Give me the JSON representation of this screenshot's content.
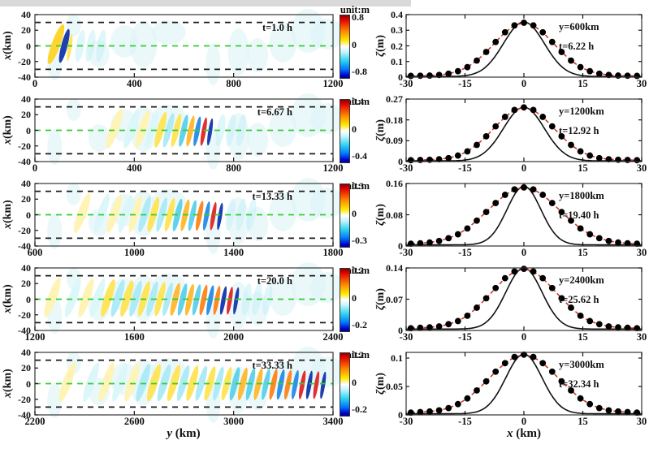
{
  "figure": {
    "unit_label": "unit:m",
    "left_ylabel_italic": "x",
    "left_ylabel_rest": " (km)",
    "left_xlabel_italic": "y",
    "left_xlabel_rest": " (km)",
    "right_ylabel_italic": "ζ",
    "right_ylabel_rest": "(m)",
    "right_xlabel_italic": "x",
    "right_xlabel_rest": " (km)",
    "colors": {
      "green_dash": "#35cc35",
      "black_dash": "#1a1a1a",
      "red_dash_curve": "#d42d1e",
      "solid_curve": "#111111",
      "dot_fill": "#000000",
      "frame": "#333333"
    }
  },
  "chart_data": {
    "type": "figure",
    "left_panels": [
      {
        "type": "heatmap",
        "time_label": "t=1.0 h",
        "xlim": [
          0,
          1200
        ],
        "xticks": [
          "0",
          "400",
          "800",
          "1200"
        ],
        "yticks": [
          "40",
          "20",
          "0",
          "-20",
          "-40"
        ],
        "dashed_lines_km": [
          30,
          0,
          -30
        ],
        "colorbar": {
          "max": "0.8",
          "mid": "0",
          "min": "-0.8"
        },
        "packet": {
          "y_start_km": 85,
          "y_end_km": 140,
          "n": 3,
          "i0": 0.55,
          "gamma": 0.6,
          "colors": [
            "#ffd21f",
            "#0b2fa8",
            "#ffe34d"
          ]
        }
      },
      {
        "type": "heatmap",
        "time_label": "t=6.67 h",
        "xlim": [
          0,
          1200
        ],
        "xticks": [
          "0",
          "400",
          "800",
          "1200"
        ],
        "yticks": [
          "40",
          "20",
          "0",
          "-20",
          "-40"
        ],
        "dashed_lines_km": [
          30,
          0,
          -30
        ],
        "colorbar": {
          "max": "0.4",
          "mid": "0",
          "min": "-0.4"
        },
        "packet": {
          "y_start_km": 320,
          "y_end_km": 705,
          "n": 12,
          "i0": 0.15,
          "gamma": 2.2
        }
      },
      {
        "type": "heatmap",
        "time_label": "t=13.33 h",
        "xlim": [
          600,
          1800
        ],
        "xticks": [
          "600",
          "1000",
          "1400",
          "1800"
        ],
        "yticks": [
          "40",
          "20",
          "0",
          "-20",
          "-40"
        ],
        "dashed_lines_km": [
          30,
          0,
          -30
        ],
        "colorbar": {
          "max": "0.3",
          "mid": "0",
          "min": "-0.3"
        },
        "packet": {
          "y_start_km": 790,
          "y_end_km": 1345,
          "n": 16,
          "i0": 0.15,
          "gamma": 2.2
        }
      },
      {
        "type": "heatmap",
        "time_label": "t=20.0 h",
        "xlim": [
          1200,
          2400
        ],
        "xticks": [
          "1200",
          "1600",
          "2000",
          "2400"
        ],
        "yticks": [
          "40",
          "20",
          "0",
          "-20",
          "-40"
        ],
        "dashed_lines_km": [
          30,
          0,
          -30
        ],
        "colorbar": {
          "max": "0.2",
          "mid": "0",
          "min": "-0.2"
        },
        "packet": {
          "y_start_km": 1270,
          "y_end_km": 2010,
          "n": 22,
          "i0": 0.18,
          "gamma": 2.2
        }
      },
      {
        "type": "heatmap",
        "time_label": "t=33.33 h",
        "xlim": [
          2200,
          3400
        ],
        "xticks": [
          "2200",
          "2600",
          "3000",
          "3400"
        ],
        "yticks": [
          "40",
          "20",
          "0",
          "-20",
          "-40"
        ],
        "dashed_lines_km": [
          30,
          0,
          -30
        ],
        "colorbar": {
          "max": "0.2",
          "mid": "0",
          "min": "-0.2"
        },
        "packet": {
          "y_start_km": 2330,
          "y_end_km": 3360,
          "n": 28,
          "i0": 0.18,
          "gamma": 2.2
        }
      }
    ],
    "right_panels": [
      {
        "type": "line+scatter",
        "y_label": "y=600km",
        "t_label": "t=6.22 h",
        "ylim": 0.4,
        "yticks": [
          "0",
          "0.1",
          "0.2",
          "0.3",
          "0.4"
        ],
        "xticks": [
          "-30",
          "-15",
          "0",
          "15",
          "30"
        ],
        "solid": {
          "amp": 0.349,
          "sigma": 5.2,
          "base": 0.004
        },
        "dots_x": [
          -28.8,
          -26.4,
          -24,
          -21.6,
          -19.2,
          -16.8,
          -14.4,
          -12,
          -9.6,
          -7.2,
          -4.8,
          -2.4,
          0,
          2.4,
          4.8,
          7.2,
          9.6,
          12,
          14.4,
          16.8,
          19.2,
          21.6,
          24,
          26.4,
          28.8
        ],
        "dots_y": [
          0.008,
          0.009,
          0.01,
          0.014,
          0.022,
          0.038,
          0.064,
          0.106,
          0.161,
          0.225,
          0.287,
          0.331,
          0.348,
          0.331,
          0.287,
          0.225,
          0.161,
          0.106,
          0.064,
          0.038,
          0.022,
          0.014,
          0.01,
          0.009,
          0.008
        ]
      },
      {
        "type": "line+scatter",
        "y_label": "y=1200km",
        "t_label": "t=12.92 h",
        "ylim": 0.27,
        "yticks": [
          "0",
          "0.09",
          "0.18",
          "0.27"
        ],
        "xticks": [
          "-30",
          "-15",
          "0",
          "15",
          "30"
        ],
        "solid": {
          "amp": 0.232,
          "sigma": 5.2,
          "base": 0.003
        },
        "dots_x": [
          -28.8,
          -26.4,
          -24,
          -21.6,
          -19.2,
          -16.8,
          -14.4,
          -12,
          -9.6,
          -7.2,
          -4.8,
          -2.4,
          0,
          2.4,
          4.8,
          7.2,
          9.6,
          12,
          14.4,
          16.8,
          19.2,
          21.6,
          24,
          26.4,
          28.8
        ],
        "dots_y": [
          0.006,
          0.007,
          0.008,
          0.01,
          0.015,
          0.026,
          0.044,
          0.072,
          0.109,
          0.152,
          0.193,
          0.223,
          0.234,
          0.223,
          0.193,
          0.152,
          0.109,
          0.072,
          0.044,
          0.026,
          0.015,
          0.01,
          0.008,
          0.007,
          0.006
        ]
      },
      {
        "type": "line+scatter",
        "y_label": "y=1800km",
        "t_label": "t=19.40 h",
        "ylim": 0.16,
        "yticks": [
          "0",
          "0.08",
          "0.16"
        ],
        "xticks": [
          "-30",
          "-15",
          "0",
          "15",
          "30"
        ],
        "solid": {
          "amp": 0.15,
          "sigma": 4.3,
          "base": 0.003
        },
        "dots_x": [
          -28.8,
          -26.4,
          -24,
          -21.6,
          -19.2,
          -16.8,
          -14.4,
          -12,
          -9.6,
          -7.2,
          -4.8,
          -2.4,
          0,
          2.4,
          4.8,
          7.2,
          9.6,
          12,
          14.4,
          16.8,
          19.2,
          21.6,
          24,
          26.4,
          28.8
        ],
        "dots_y": [
          0.006,
          0.007,
          0.009,
          0.013,
          0.02,
          0.03,
          0.045,
          0.065,
          0.087,
          0.11,
          0.131,
          0.145,
          0.15,
          0.145,
          0.131,
          0.11,
          0.087,
          0.065,
          0.045,
          0.03,
          0.02,
          0.013,
          0.009,
          0.007,
          0.006
        ]
      },
      {
        "type": "line+scatter",
        "y_label": "y=2400km",
        "t_label": "t=25.62 h",
        "ylim": 0.14,
        "yticks": [
          "0",
          "0.07",
          "0.14"
        ],
        "xticks": [
          "-30",
          "-15",
          "0",
          "15",
          "30"
        ],
        "solid": {
          "amp": 0.137,
          "sigma": 4.6,
          "base": 0.003
        },
        "dots_x": [
          -28.8,
          -26.4,
          -24,
          -21.6,
          -19.2,
          -16.8,
          -14.4,
          -12,
          -9.6,
          -7.2,
          -4.8,
          -2.4,
          0,
          2.4,
          4.8,
          7.2,
          9.6,
          12,
          14.4,
          16.8,
          19.2,
          21.6,
          24,
          26.4,
          28.8
        ],
        "dots_y": [
          0.005,
          0.006,
          0.007,
          0.009,
          0.014,
          0.021,
          0.033,
          0.051,
          0.072,
          0.095,
          0.117,
          0.132,
          0.138,
          0.132,
          0.117,
          0.095,
          0.072,
          0.051,
          0.033,
          0.021,
          0.014,
          0.009,
          0.007,
          0.006,
          0.005
        ]
      },
      {
        "type": "line+scatter",
        "y_label": "y=3000km",
        "t_label": "t=32.34 h",
        "ylim": 0.11,
        "yticks": [
          "0",
          "0.05",
          "0.1"
        ],
        "xticks": [
          "-30",
          "-15",
          "0",
          "15",
          "30"
        ],
        "solid": {
          "amp": 0.105,
          "sigma": 4.6,
          "base": 0.002
        },
        "dots_x": [
          -28.8,
          -26.4,
          -24,
          -21.6,
          -19.2,
          -16.8,
          -14.4,
          -12,
          -9.6,
          -7.2,
          -4.8,
          -2.4,
          0,
          2.4,
          4.8,
          7.2,
          9.6,
          12,
          14.4,
          16.8,
          19.2,
          21.6,
          24,
          26.4,
          28.8
        ],
        "dots_y": [
          0.004,
          0.005,
          0.006,
          0.008,
          0.012,
          0.019,
          0.029,
          0.043,
          0.059,
          0.076,
          0.091,
          0.102,
          0.106,
          0.102,
          0.091,
          0.076,
          0.059,
          0.043,
          0.029,
          0.019,
          0.012,
          0.008,
          0.006,
          0.005,
          0.004
        ]
      }
    ]
  }
}
